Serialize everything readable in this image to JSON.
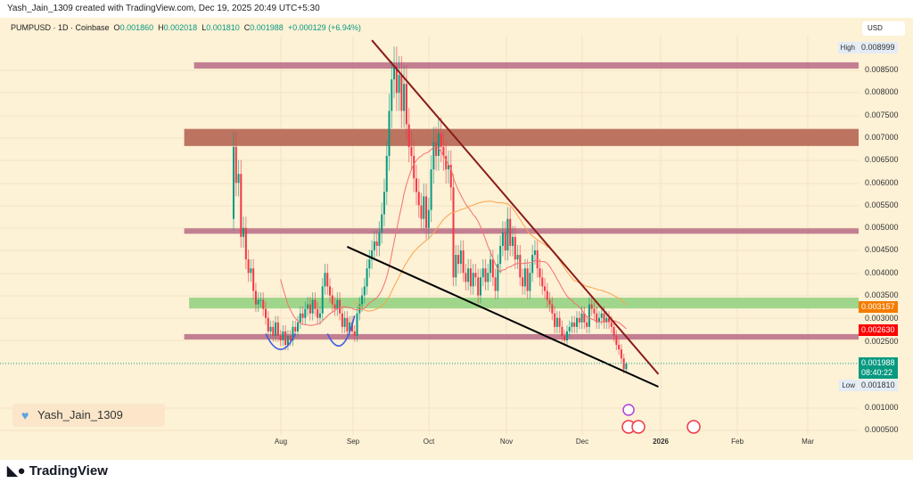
{
  "header": {
    "text": "Yash_Jain_1309 created with TradingView.com, Dec 19, 2025 20:49 UTC+5:30"
  },
  "legend": {
    "symbol": "PUMPUSD · 1D · Coinbase",
    "o_label": "O",
    "o": "0.001860",
    "h_label": "H",
    "h": "0.002018",
    "l_label": "L",
    "l": "0.001810",
    "c_label": "C",
    "c": "0.001988",
    "change": "+0.000129 (+6.94%)"
  },
  "axis": {
    "currency": "USD",
    "ticks": [
      "0.008500",
      "0.008000",
      "0.007500",
      "0.007000",
      "0.006500",
      "0.006000",
      "0.005500",
      "0.005000",
      "0.004500",
      "0.004000",
      "0.003500",
      "0.003000",
      "0.002500",
      "0.001000",
      "0.000500"
    ],
    "high_label": "High",
    "high": "0.008999",
    "low_label": "Low",
    "low": "0.001810",
    "label_orange": "0.003157",
    "label_red": "0.002630",
    "last_price": "0.001988",
    "countdown": "08:40:22"
  },
  "time_axis": [
    "Aug",
    "Sep",
    "Oct",
    "Nov",
    "Dec",
    "2026",
    "Feb",
    "Mar"
  ],
  "watermark": "Yash_Jain_1309",
  "footer": {
    "brand": "TradingView"
  },
  "colors": {
    "up": "#089981",
    "down": "#f23645",
    "bg": "#fdf1d6",
    "zone_pink": "#b96b86",
    "zone_brown": "#b05e4c",
    "zone_green": "#8fd17f",
    "ma_fast": "#f47070",
    "ma_slow": "#f9a54a",
    "resistance": "#8b1a1a",
    "support": "#000000",
    "arc": "#3f5fe0",
    "orange_label": "#f57c00",
    "red_label": "#ff0000"
  },
  "chart_data": {
    "type": "candlestick",
    "symbol": "PUMPUSD",
    "interval": "1D",
    "start_date": "2025-07-13",
    "first_open": 0.0052,
    "closes": [
      0.0068,
      0.006,
      0.0062,
      0.0048,
      0.005,
      0.0043,
      0.004,
      0.0041,
      0.0036,
      0.0033,
      0.0034,
      0.0034,
      0.0032,
      0.003,
      0.0027,
      0.0028,
      0.0026,
      0.0029,
      0.0026,
      0.0025,
      0.0027,
      0.0024,
      0.0026,
      0.0025,
      0.0028,
      0.0027,
      0.0029,
      0.0031,
      0.003,
      0.0032,
      0.0033,
      0.0031,
      0.0034,
      0.0032,
      0.003,
      0.0031,
      0.0037,
      0.004,
      0.0037,
      0.0035,
      0.0033,
      0.0032,
      0.0034,
      0.0031,
      0.0028,
      0.003,
      0.0027,
      0.0029,
      0.0027,
      0.0026,
      0.0031,
      0.0033,
      0.0035,
      0.0037,
      0.0041,
      0.0043,
      0.0045,
      0.0047,
      0.0046,
      0.0049,
      0.0053,
      0.0058,
      0.0066,
      0.0076,
      0.0083,
      0.0086,
      0.008,
      0.0084,
      0.0076,
      0.0082,
      0.0073,
      0.0068,
      0.0066,
      0.0061,
      0.0058,
      0.0055,
      0.0052,
      0.0057,
      0.005,
      0.0054,
      0.0063,
      0.0069,
      0.0066,
      0.0071,
      0.0068,
      0.0066,
      0.0063,
      0.0064,
      0.0059,
      0.0039,
      0.0044,
      0.0042,
      0.0045,
      0.004,
      0.0038,
      0.0041,
      0.0037,
      0.004,
      0.0039,
      0.0035,
      0.0039,
      0.0041,
      0.0038,
      0.004,
      0.0043,
      0.0039,
      0.0036,
      0.0042,
      0.0046,
      0.0049,
      0.0045,
      0.0052,
      0.0046,
      0.0048,
      0.0043,
      0.0044,
      0.0039,
      0.0037,
      0.0041,
      0.0036,
      0.004,
      0.0044,
      0.0045,
      0.0041,
      0.0039,
      0.0037,
      0.0036,
      0.0034,
      0.0033,
      0.0031,
      0.0028,
      0.003,
      0.0028,
      0.0026,
      0.0025,
      0.0027,
      0.0028,
      0.0029,
      0.0028,
      0.003,
      0.0029,
      0.0031,
      0.0029,
      0.0028,
      0.0033,
      0.0032,
      0.0031,
      0.0029,
      0.003,
      0.0031,
      0.0029,
      0.003,
      0.0029,
      0.0028,
      0.0026,
      0.0024,
      0.0023,
      0.0021,
      0.00186,
      0.001988
    ],
    "last_candle": {
      "o": 0.00186,
      "h": 0.002018,
      "l": 0.00181,
      "c": 0.001988
    },
    "high": 0.008999,
    "low": 0.00181,
    "moving_averages": [
      {
        "period": 20,
        "color": "#f47070"
      },
      {
        "period": 50,
        "color": "#f9a54a"
      }
    ],
    "zones": [
      {
        "start": "2025-06-27",
        "top": 0.00868,
        "bottom": 0.00854,
        "color": "#b96b86"
      },
      {
        "start": "2025-06-23",
        "top": 0.0072,
        "bottom": 0.00682,
        "color": "#b05e4c"
      },
      {
        "start": "2025-06-23",
        "top": 0.00499,
        "bottom": 0.00487,
        "color": "#b96b86"
      },
      {
        "start": "2025-06-25",
        "top": 0.00345,
        "bottom": 0.00321,
        "color": "#8fd17f"
      },
      {
        "start": "2025-06-23",
        "top": 0.00264,
        "bottom": 0.00252,
        "color": "#b96b86"
      }
    ],
    "trendlines": [
      {
        "from": [
          "2025-09-07",
          0.00917
        ],
        "to": [
          "2026-01-01",
          0.00175
        ],
        "color": "#8b1a1a"
      },
      {
        "from": [
          "2025-08-28",
          0.00458
        ],
        "to": [
          "2026-01-01",
          0.00147
        ],
        "color": "#000000"
      }
    ],
    "arcs": [
      {
        "from": [
          "2025-07-26",
          0.00265
        ],
        "bottom": [
          "2025-08-01",
          0.0023
        ],
        "to": [
          "2025-08-07",
          0.00265
        ]
      },
      {
        "from": [
          "2025-08-20",
          0.00265
        ],
        "bottom": [
          "2025-08-26",
          0.0024
        ],
        "to": [
          "2025-08-31",
          0.00305
        ]
      }
    ],
    "yrange": [
      0.0004,
      0.0094
    ]
  }
}
